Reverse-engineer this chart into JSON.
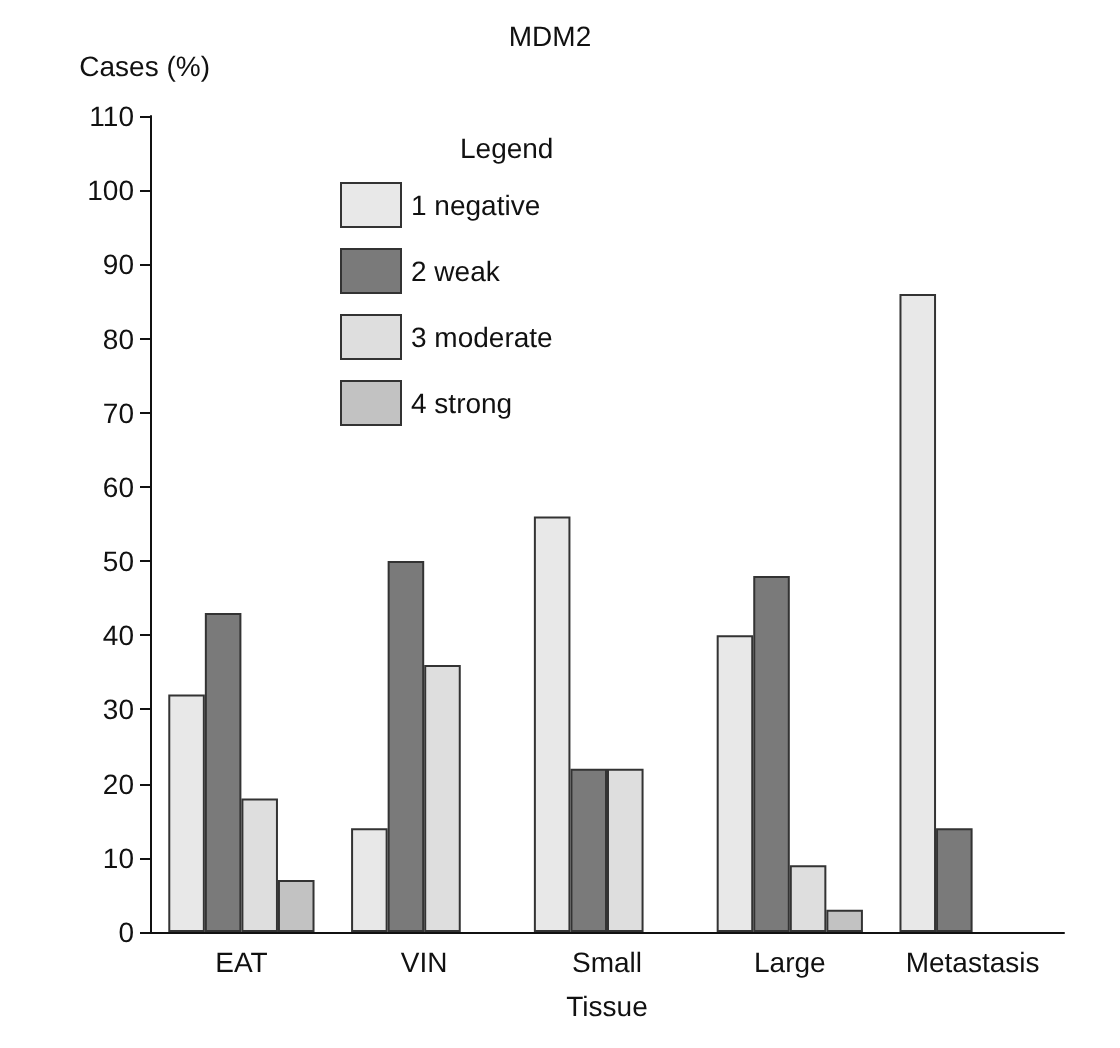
{
  "chart_data": {
    "type": "bar",
    "title": "MDM2",
    "xlabel": "Tissue",
    "ylabel": "Cases (%)",
    "legend_title": "Legend",
    "categories": [
      "EAT",
      "VIN",
      "Small",
      "Large",
      "Metastasis"
    ],
    "series": [
      {
        "name": "1 negative",
        "color": "#e8e8e8",
        "values": [
          32,
          14,
          56,
          40,
          86
        ]
      },
      {
        "name": "2 weak",
        "color": "#7a7a7a",
        "values": [
          43,
          50,
          22,
          48,
          14
        ]
      },
      {
        "name": "3 moderate",
        "color": "#dedede",
        "values": [
          18,
          36,
          22,
          9,
          0
        ]
      },
      {
        "name": "4 strong",
        "color": "#c2c2c2",
        "values": [
          7,
          0,
          0,
          3,
          0
        ]
      }
    ],
    "ylim": [
      0,
      110
    ],
    "yticks": [
      0,
      10,
      20,
      30,
      40,
      50,
      60,
      70,
      80,
      90,
      100,
      110
    ],
    "grid": false,
    "legend": "top left"
  }
}
